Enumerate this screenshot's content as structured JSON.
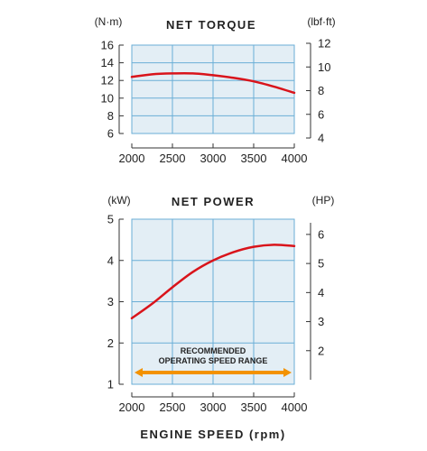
{
  "chart_data": [
    {
      "type": "line",
      "title": "NET TORQUE",
      "left_unit": "(N·m)",
      "right_unit": "(lbf·ft)",
      "x": [
        2000,
        2250,
        2500,
        2750,
        3000,
        3250,
        3500,
        3750,
        4000
      ],
      "series": [
        {
          "values": [
            12.4,
            12.7,
            12.8,
            12.8,
            12.6,
            12.3,
            11.9,
            11.3,
            10.6
          ]
        }
      ],
      "xlim": [
        2000,
        4000
      ],
      "xticks": [
        2000,
        2500,
        3000,
        3500,
        4000
      ],
      "ylim": [
        6,
        16
      ],
      "yticks": [
        6,
        8,
        10,
        12,
        14,
        16
      ],
      "y2lim": [
        4,
        12
      ],
      "y2ticks": [
        4,
        6,
        8,
        10,
        12
      ],
      "grid": true,
      "series_color": "#d9141b",
      "plot_background": "#e3eef5",
      "grid_color": "#6aaed6"
    },
    {
      "type": "line",
      "title": "NET POWER",
      "left_unit": "(kW)",
      "right_unit": "(HP)",
      "x": [
        2000,
        2250,
        2500,
        2750,
        3000,
        3250,
        3500,
        3750,
        4000
      ],
      "series": [
        {
          "values": [
            2.6,
            2.95,
            3.35,
            3.72,
            4.0,
            4.2,
            4.33,
            4.38,
            4.35
          ]
        }
      ],
      "xlim": [
        2000,
        4000
      ],
      "xticks": [
        2000,
        2500,
        3000,
        3500,
        4000
      ],
      "ylim": [
        1,
        5
      ],
      "yticks": [
        1,
        2,
        3,
        4,
        5
      ],
      "y2lim": [
        1,
        6.4
      ],
      "y2ticks": [
        2,
        3,
        4,
        5,
        6
      ],
      "grid": true,
      "series_color": "#d9141b",
      "plot_background": "#e3eef5",
      "grid_color": "#6aaed6",
      "annotation": {
        "line1": "RECOMMENDED",
        "line2": "OPERATING SPEED RANGE",
        "range": [
          2000,
          4000
        ],
        "color": "#f39200"
      }
    }
  ],
  "shared_xlabel": "ENGINE SPEED (rpm)"
}
